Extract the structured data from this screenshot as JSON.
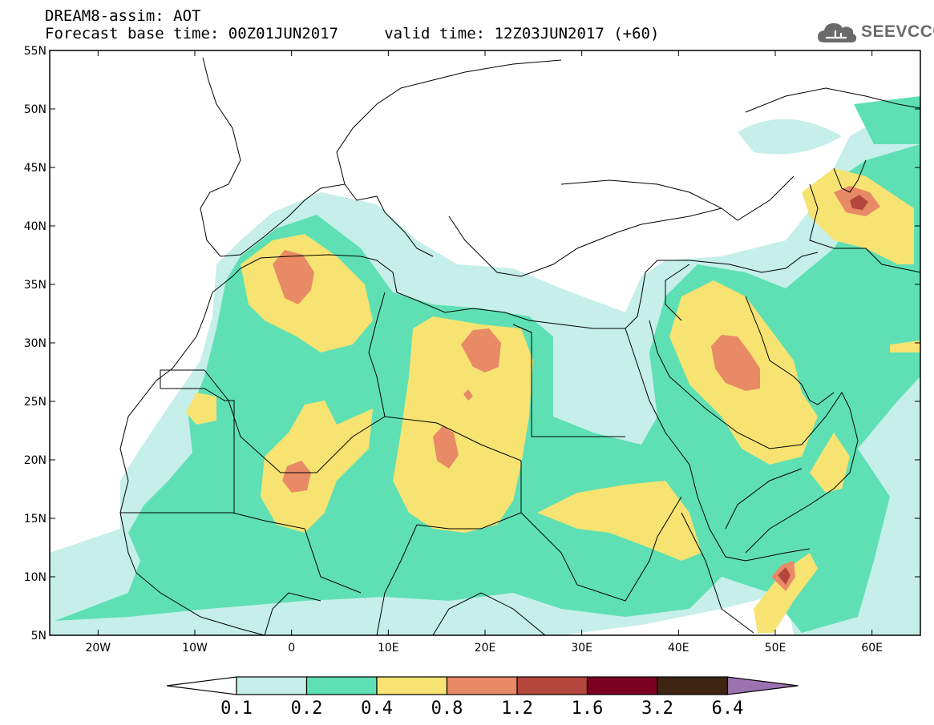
{
  "header": {
    "title_line1": "DREAM8-assim: AOT",
    "title_line2": "Forecast base time: 00Z01JUN2017     valid time: 12Z03JUN2017 (+60)"
  },
  "logo": {
    "text": "SEEVCCC",
    "icon": "cloud-icon"
  },
  "map": {
    "lon_range": [
      -25,
      65
    ],
    "lat_range": [
      5,
      55
    ],
    "lat_labels": [
      {
        "lat": 55,
        "label": "55N"
      },
      {
        "lat": 50,
        "label": "50N"
      },
      {
        "lat": 45,
        "label": "45N"
      },
      {
        "lat": 40,
        "label": "40N"
      },
      {
        "lat": 35,
        "label": "35N"
      },
      {
        "lat": 30,
        "label": "30N"
      },
      {
        "lat": 25,
        "label": "25N"
      },
      {
        "lat": 20,
        "label": "20N"
      },
      {
        "lat": 15,
        "label": "15N"
      },
      {
        "lat": 10,
        "label": "10N"
      },
      {
        "lat": 5,
        "label": "5N"
      }
    ],
    "lon_labels": [
      {
        "lon": -20,
        "label": "20W"
      },
      {
        "lon": -10,
        "label": "10W"
      },
      {
        "lon": 0,
        "label": "0"
      },
      {
        "lon": 10,
        "label": "10E"
      },
      {
        "lon": 20,
        "label": "20E"
      },
      {
        "lon": 30,
        "label": "30E"
      },
      {
        "lon": 40,
        "label": "40E"
      },
      {
        "lon": 50,
        "label": "50E"
      },
      {
        "lon": 60,
        "label": "60E"
      }
    ]
  },
  "colorbar": {
    "labels": [
      "0.1",
      "0.2",
      "0.4",
      "0.8",
      "1.2",
      "1.6",
      "3.2",
      "6.4"
    ],
    "colors": [
      "#c5efe8",
      "#5ee0b4",
      "#f6e372",
      "#e98a66",
      "#b4463c",
      "#7c0021",
      "#3e2411",
      "#9c73b0"
    ],
    "under_color": "#ffffff"
  }
}
